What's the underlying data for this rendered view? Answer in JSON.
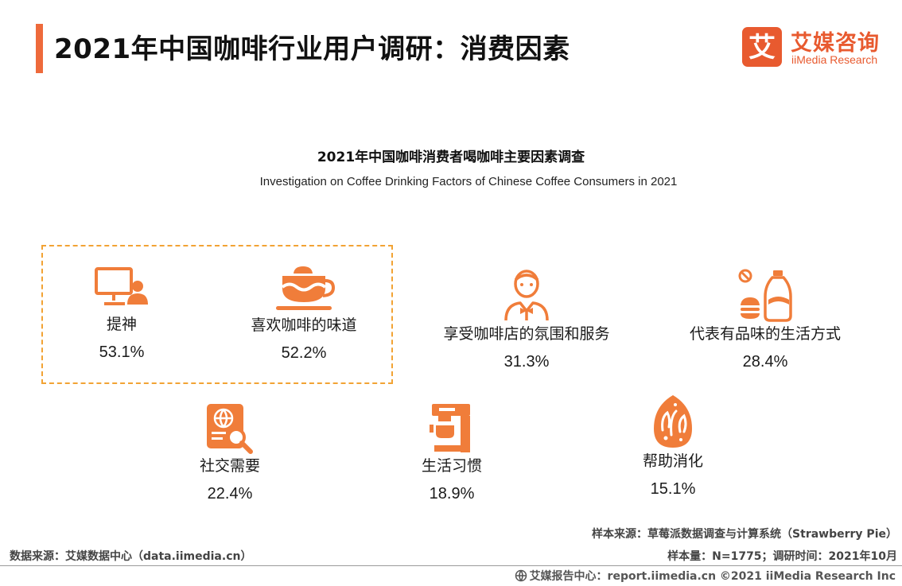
{
  "header": {
    "title": "2021年中国咖啡行业用户调研：消费因素",
    "logo_cn": "艾媒咨询",
    "logo_en": "iiMedia Research",
    "logo_mark_char": "艾"
  },
  "chart_data": {
    "type": "table",
    "title": "2021年中国咖啡消费者喝咖啡主要因素调查",
    "subtitle": "Investigation on Coffee Drinking Factors of Chinese Coffee Consumers in 2021",
    "unit": "%",
    "categories": [
      "提神",
      "喜欢咖啡的味道",
      "享受咖啡店的氛围和服务",
      "代表有品味的生活方式",
      "社交需要",
      "生活习惯",
      "帮助消化"
    ],
    "values": [
      53.1,
      52.2,
      31.3,
      28.4,
      22.4,
      18.9,
      15.1
    ],
    "highlighted": [
      "提神",
      "喜欢咖啡的味道"
    ]
  },
  "factors": [
    {
      "label": "提神",
      "value": "53.1%",
      "icon": "computer-user-icon"
    },
    {
      "label": "喜欢咖啡的味道",
      "value": "52.2%",
      "icon": "coffee-cup-icon"
    },
    {
      "label": "享受咖啡店的氛围和服务",
      "value": "31.3%",
      "icon": "waiter-icon"
    },
    {
      "label": "代表有品味的生活方式",
      "value": "28.4%",
      "icon": "burger-drink-icon"
    },
    {
      "label": "社交需要",
      "value": "22.4%",
      "icon": "web-search-icon"
    },
    {
      "label": "生活习惯",
      "value": "18.9%",
      "icon": "coffee-machine-icon"
    },
    {
      "label": "帮助消化",
      "value": "15.1%",
      "icon": "stomach-icon"
    }
  ],
  "sources": {
    "sample_source": "样本来源：草莓派数据调查与计算系统（Strawberry Pie）",
    "sample_size": "样本量：N=1775；调研时间：2021年10月",
    "data_source": "数据来源：艾媒数据中心（data.iimedia.cn）",
    "footer": "艾媒报告中心：report.iimedia.cn ©2021 iiMedia Research Inc"
  },
  "colors": {
    "accent": "#ee6a3b",
    "icon": "#f07d3a",
    "highlight_border": "#f2a334",
    "brand": "#e85a2f"
  }
}
